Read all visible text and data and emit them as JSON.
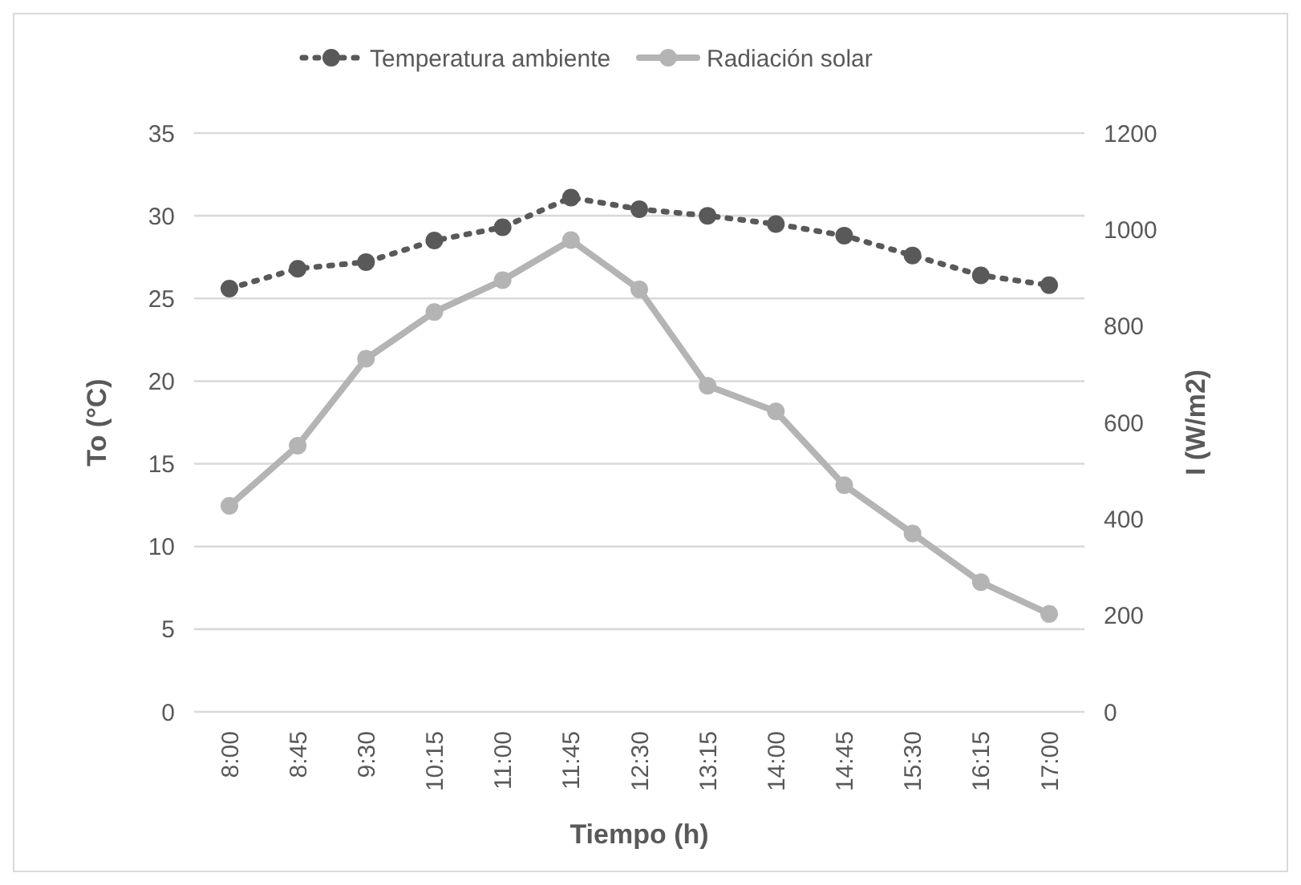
{
  "chart_data": {
    "type": "line",
    "xlabel": "Tiempo (h)",
    "ylabel": "To (°C)",
    "y2label": "I (W/m2)",
    "categories": [
      "8:00",
      "8:45",
      "9:30",
      "10:15",
      "11:00",
      "11:45",
      "12:30",
      "13:15",
      "14:00",
      "14:45",
      "15:30",
      "16:15",
      "17:00"
    ],
    "series": [
      {
        "name": "Temperatura ambiente",
        "color": "#595959",
        "line_style": "dotted",
        "marker": "circle",
        "values": [
          25.6,
          26.8,
          27.2,
          28.5,
          29.3,
          31.1,
          30.4,
          30.0,
          29.5,
          28.8,
          27.6,
          26.4,
          25.8
        ]
      },
      {
        "name": "Radiación solar",
        "color": "#b4b4b4",
        "line_style": "solid",
        "marker": "circle",
        "axis": "y2",
        "values": [
          427,
          552,
          732,
          829,
          895,
          978,
          876,
          676,
          623,
          470,
          370,
          269,
          203
        ]
      }
    ],
    "ylim": [
      0,
      35
    ],
    "yticks": [
      0,
      5,
      10,
      15,
      20,
      25,
      30,
      35
    ],
    "y2lim": [
      0,
      1200
    ],
    "y2ticks": [
      0,
      200,
      400,
      600,
      800,
      1000,
      1200
    ],
    "grid": "y",
    "legend": "top"
  }
}
